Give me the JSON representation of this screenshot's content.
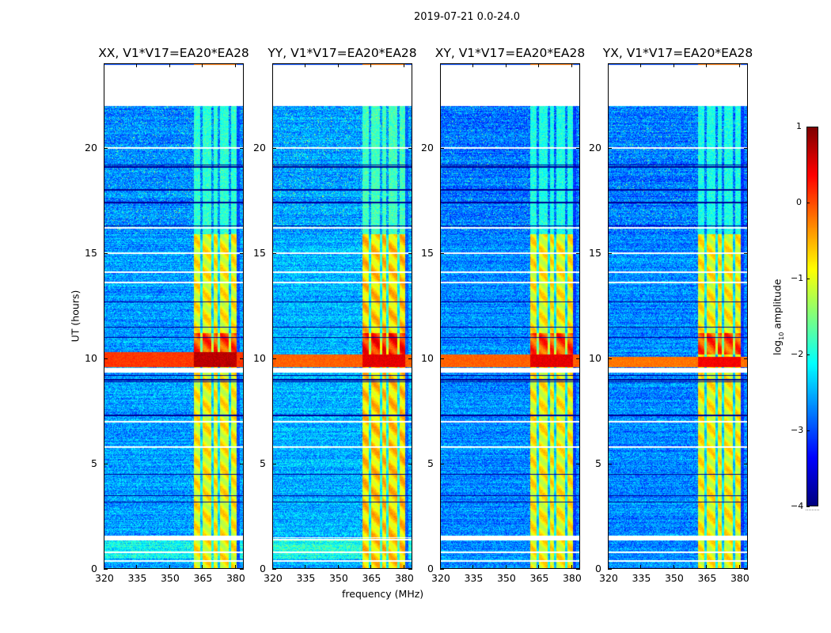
{
  "suptitle": "2019-07-21 0.0-24.0",
  "panels": [
    {
      "id": "xx",
      "title": "XX, V1*V17=EA20*EA28",
      "show_ylabel": true
    },
    {
      "id": "yy",
      "title": "YY, V1*V17=EA20*EA28",
      "show_ylabel": false
    },
    {
      "id": "xy",
      "title": "XY, V1*V17=EA20*EA28",
      "show_ylabel": false
    },
    {
      "id": "yx",
      "title": "YX, V1*V17=EA20*EA28",
      "show_ylabel": false
    }
  ],
  "chart_data": {
    "type": "heatmap",
    "title": "2019-07-21 0.0-24.0",
    "xlabel": "frequency (MHz)",
    "ylabel": "UT (hours)",
    "xlim": [
      320,
      384
    ],
    "ylim": [
      0,
      24
    ],
    "xticks": [
      320,
      335,
      350,
      365,
      380
    ],
    "xtick_labels": [
      "320",
      "335",
      "350",
      "365",
      "380"
    ],
    "yticks": [
      0,
      5,
      10,
      15,
      20
    ],
    "ytick_labels": [
      "0",
      "5",
      "10",
      "15",
      "20"
    ],
    "colormap": "jet",
    "colorbar": {
      "label": "log10 amplitude",
      "label_main": "log",
      "label_sub": "10",
      "label_rest": " amplitude",
      "range": [
        -4,
        1
      ],
      "ticks": [
        1,
        0,
        -1,
        -2,
        -3,
        -4
      ],
      "tick_labels": [
        "1",
        "0",
        "−1",
        "−2",
        "−3",
        "−4"
      ]
    },
    "panels": [
      {
        "name": "XX",
        "baseline": "V1*V17=EA20*EA28",
        "background_log_amp": -2.6,
        "rfi_level": -0.9,
        "flare_level": 0.6,
        "flare_hours": [
          9.6,
          10.3
        ],
        "flare_extent": "full band"
      },
      {
        "name": "YY",
        "baseline": "V1*V17=EA20*EA28",
        "background_log_amp": -2.5,
        "rfi_level": -0.7,
        "flare_level": 0.4,
        "flare_hours": [
          9.6,
          10.2
        ],
        "flare_extent": "full band"
      },
      {
        "name": "XY",
        "baseline": "V1*V17=EA20*EA28",
        "background_log_amp": -2.7,
        "rfi_level": -0.9,
        "flare_level": 0.4,
        "flare_hours": [
          9.6,
          10.2
        ],
        "flare_extent": "full band"
      },
      {
        "name": "YX",
        "baseline": "V1*V17=EA20*EA28",
        "background_log_amp": -2.7,
        "rfi_level": -0.9,
        "flare_level": 0.3,
        "flare_hours": [
          9.6,
          10.1
        ],
        "flare_extent": "full band"
      }
    ],
    "features": {
      "no_data_hours": [
        22.0,
        24.0
      ],
      "rfi_band_mhz": [
        361,
        380.5
      ],
      "rfi_gaps_mhz": [
        364.5,
        369.5,
        372.5,
        377.5
      ],
      "rfi_weak_hours": [
        15.9,
        22.0
      ],
      "flagged_white_hours": [
        1.4,
        1.5,
        9.45,
        9.5,
        15.0,
        16.2,
        20.0,
        13.6,
        14.1,
        7.0,
        5.8,
        0.4,
        0.8
      ],
      "dark_line_hours": [
        19.1,
        19.2,
        16.3,
        12.7,
        11.5,
        11.0,
        9.2,
        9.0,
        8.9,
        4.5,
        3.5,
        3.2,
        7.3,
        18.0,
        17.4
      ],
      "bright_background_hours": [
        0.5,
        1.4
      ]
    }
  }
}
